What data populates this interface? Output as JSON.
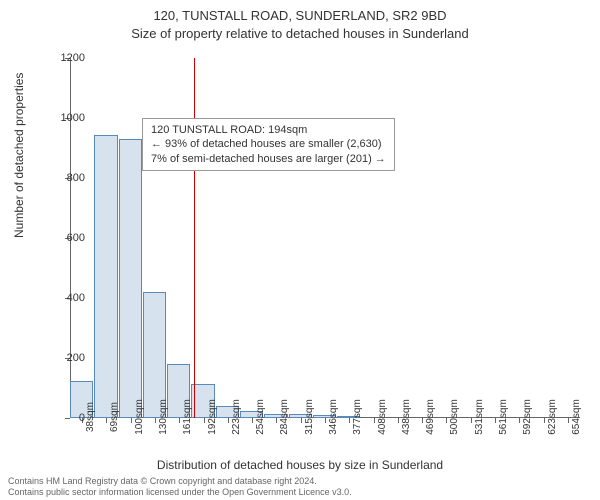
{
  "chart": {
    "type": "histogram",
    "title": "120, TUNSTALL ROAD, SUNDERLAND, SR2 9BD",
    "subtitle": "Size of property relative to detached houses in Sunderland",
    "x_axis_label": "Distribution of detached houses by size in Sunderland",
    "y_axis_label": "Number of detached properties",
    "ylim": [
      0,
      1200
    ],
    "ytick_step": 200,
    "yticks": [
      0,
      200,
      400,
      600,
      800,
      1000,
      1200
    ],
    "categories": [
      "38sqm",
      "69sqm",
      "100sqm",
      "130sqm",
      "161sqm",
      "192sqm",
      "223sqm",
      "254sqm",
      "284sqm",
      "315sqm",
      "346sqm",
      "377sqm",
      "408sqm",
      "438sqm",
      "469sqm",
      "500sqm",
      "531sqm",
      "561sqm",
      "592sqm",
      "623sqm",
      "654sqm"
    ],
    "values": [
      125,
      945,
      930,
      420,
      180,
      115,
      40,
      25,
      15,
      12,
      10,
      8,
      3,
      2,
      0,
      2,
      0,
      0,
      0,
      0,
      0
    ],
    "bar_fill": "#d6e3ef",
    "bar_border": "#5a8ab8",
    "background": "#ffffff",
    "axis_color": "#666666",
    "marker_color": "#cc0000",
    "marker_position_index": 5.1,
    "title_fontsize": 13,
    "label_fontsize": 12,
    "tick_fontsize": 11
  },
  "legend": {
    "line1": "120 TUNSTALL ROAD: 194sqm",
    "line2": "← 93% of detached houses are smaller (2,630)",
    "line3": "7% of semi-detached houses are larger (201) →"
  },
  "footer": {
    "line1": "Contains HM Land Registry data © Crown copyright and database right 2024.",
    "line2": "Contains public sector information licensed under the Open Government Licence v3.0."
  }
}
